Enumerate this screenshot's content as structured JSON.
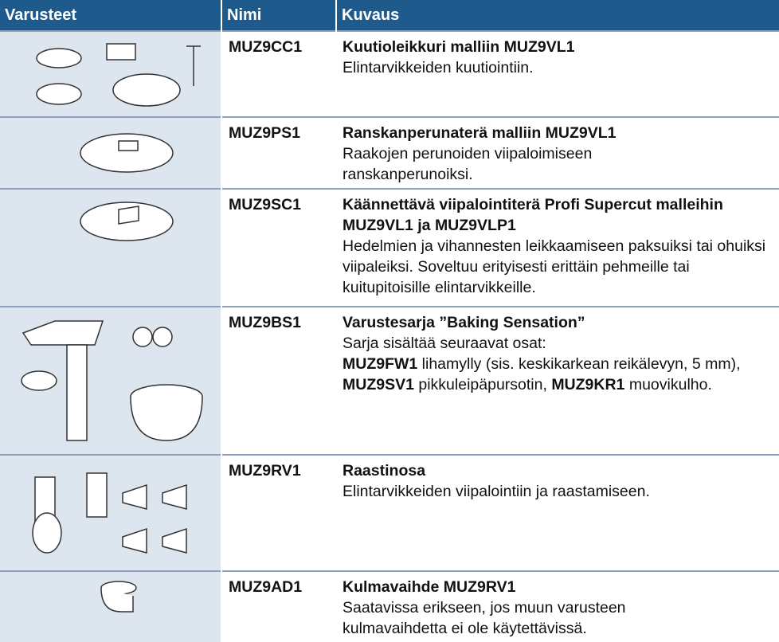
{
  "table": {
    "headers": [
      "Varusteet",
      "Nimi",
      "Kuvaus"
    ],
    "rows": [
      {
        "code": "MUZ9CC1",
        "title": "Kuutioleikkuri malliin MUZ9VL1",
        "lines": [
          "Elintarvikkeiden kuutiointiin."
        ]
      },
      {
        "code": "MUZ9PS1",
        "title": "Ranskanperunaterä malliin MUZ9VL1",
        "lines": [
          "Raakojen perunoiden viipaloimiseen",
          "ranskanperunoiksi."
        ]
      },
      {
        "code": "MUZ9SC1",
        "title": "Käännettävä viipalointiterä Profi Supercut malleihin MUZ9VL1 ja MUZ9VLP1",
        "lines": [
          "Hedelmien ja vihannesten leikkaamiseen paksuiksi tai ohuiksi viipaleiksi. Soveltuu erityisesti erittäin pehmeille tai kuitupitoisille elintarvikkeille."
        ]
      },
      {
        "code": "MUZ9BS1",
        "title": "Varustesarja ”Baking Sensation”",
        "lines": [
          "Sarja sisältää seuraavat osat:"
        ],
        "items": [
          {
            "code": "MUZ9FW1",
            "text": "lihamylly (sis. keskikarkean reikälevyn, 5 mm),"
          },
          {
            "code": "MUZ9SV1",
            "text": "pikkuleipäpursotin,"
          },
          {
            "code": "MUZ9KR1",
            "text": "muovikulho."
          }
        ]
      },
      {
        "code": "MUZ9RV1",
        "title": "Raastinosa",
        "lines": [
          "Elintarvikkeiden viipalointiin ja raastamiseen."
        ]
      },
      {
        "code": "MUZ9AD1",
        "title": "Kulmavaihde MUZ9RV1",
        "lines": [
          "Saatavissa erikseen, jos muun varusteen",
          "kulmavaihdetta ei ole käytettävissä."
        ]
      }
    ]
  }
}
